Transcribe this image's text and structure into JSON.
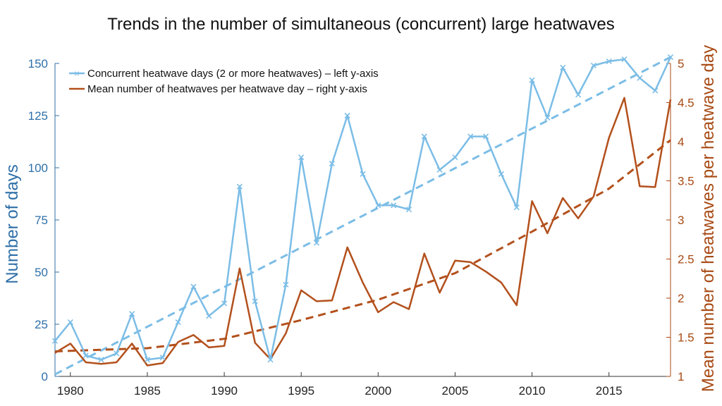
{
  "chart_data": {
    "type": "line",
    "title": "Trends in the number of simultaneous (concurrent) large heatwaves",
    "ylabel_left": "Number of days",
    "ylabel_right": "Mean number of heatwaves per heatwave day",
    "xlim": [
      1979,
      2019
    ],
    "x_ticks": [
      1980,
      1985,
      1990,
      1995,
      2000,
      2005,
      2010,
      2015
    ],
    "ylim_left": [
      0,
      150
    ],
    "y_ticks_left": [
      0,
      25,
      50,
      75,
      100,
      125,
      150
    ],
    "ylim_right": [
      1,
      5
    ],
    "y_ticks_right": [
      1,
      1.5,
      2,
      2.5,
      3,
      3.5,
      4,
      4.5,
      5
    ],
    "left_axis_color": "#2e6fa8",
    "right_axis_color": "#a84a14",
    "grid": false,
    "legend_position": "top-left",
    "series": [
      {
        "name": "Concurrent heatwave days (2 or more heatwaves) – left y-axis",
        "axis": "left",
        "color": "#7bbde6",
        "marker": "x",
        "x": [
          1979,
          1980,
          1981,
          1982,
          1983,
          1984,
          1985,
          1986,
          1987,
          1988,
          1989,
          1990,
          1991,
          1992,
          1993,
          1994,
          1995,
          1996,
          1997,
          1998,
          1999,
          2000,
          2001,
          2002,
          2003,
          2004,
          2005,
          2006,
          2007,
          2008,
          2009,
          2010,
          2011,
          2012,
          2013,
          2014,
          2015,
          2016,
          2017,
          2018,
          2019
        ],
        "values": [
          17,
          26,
          10,
          8,
          11,
          30,
          8,
          9,
          26,
          43,
          29,
          35,
          91,
          36,
          8,
          44,
          105,
          64,
          102,
          125,
          97,
          82,
          82,
          80,
          115,
          99,
          105,
          115,
          115,
          97,
          81,
          142,
          124,
          148,
          135,
          149,
          151,
          152,
          143,
          137,
          153
        ],
        "trend": [
          1,
          153
        ]
      },
      {
        "name": "Mean number of heatwaves per heatwave day – right y-axis",
        "axis": "right",
        "color": "#b3501c",
        "marker": "none",
        "x": [
          1979,
          1980,
          1981,
          1982,
          1983,
          1984,
          1985,
          1986,
          1987,
          1988,
          1989,
          1990,
          1991,
          1992,
          1993,
          1994,
          1995,
          1996,
          1997,
          1998,
          1999,
          2000,
          2001,
          2002,
          2003,
          2004,
          2005,
          2006,
          2007,
          2008,
          2009,
          2010,
          2011,
          2012,
          2013,
          2014,
          2015,
          2016,
          2017,
          2018,
          2019
        ],
        "values": [
          1.3,
          1.42,
          1.18,
          1.16,
          1.18,
          1.42,
          1.14,
          1.17,
          1.44,
          1.53,
          1.37,
          1.39,
          2.38,
          1.43,
          1.22,
          1.55,
          2.1,
          1.96,
          1.97,
          2.65,
          2.2,
          1.82,
          1.95,
          1.86,
          2.57,
          2.07,
          2.48,
          2.46,
          2.34,
          2.2,
          1.91,
          3.24,
          2.83,
          3.28,
          3.02,
          3.3,
          4.05,
          4.56,
          3.43,
          3.42,
          4.54
        ],
        "trend_curve": [
          [
            1979,
            1.32
          ],
          [
            1985,
            1.36
          ],
          [
            1990,
            1.48
          ],
          [
            1995,
            1.72
          ],
          [
            2000,
            1.98
          ],
          [
            2005,
            2.32
          ],
          [
            2010,
            2.85
          ],
          [
            2015,
            3.4
          ],
          [
            2019,
            4.02
          ]
        ]
      }
    ]
  }
}
